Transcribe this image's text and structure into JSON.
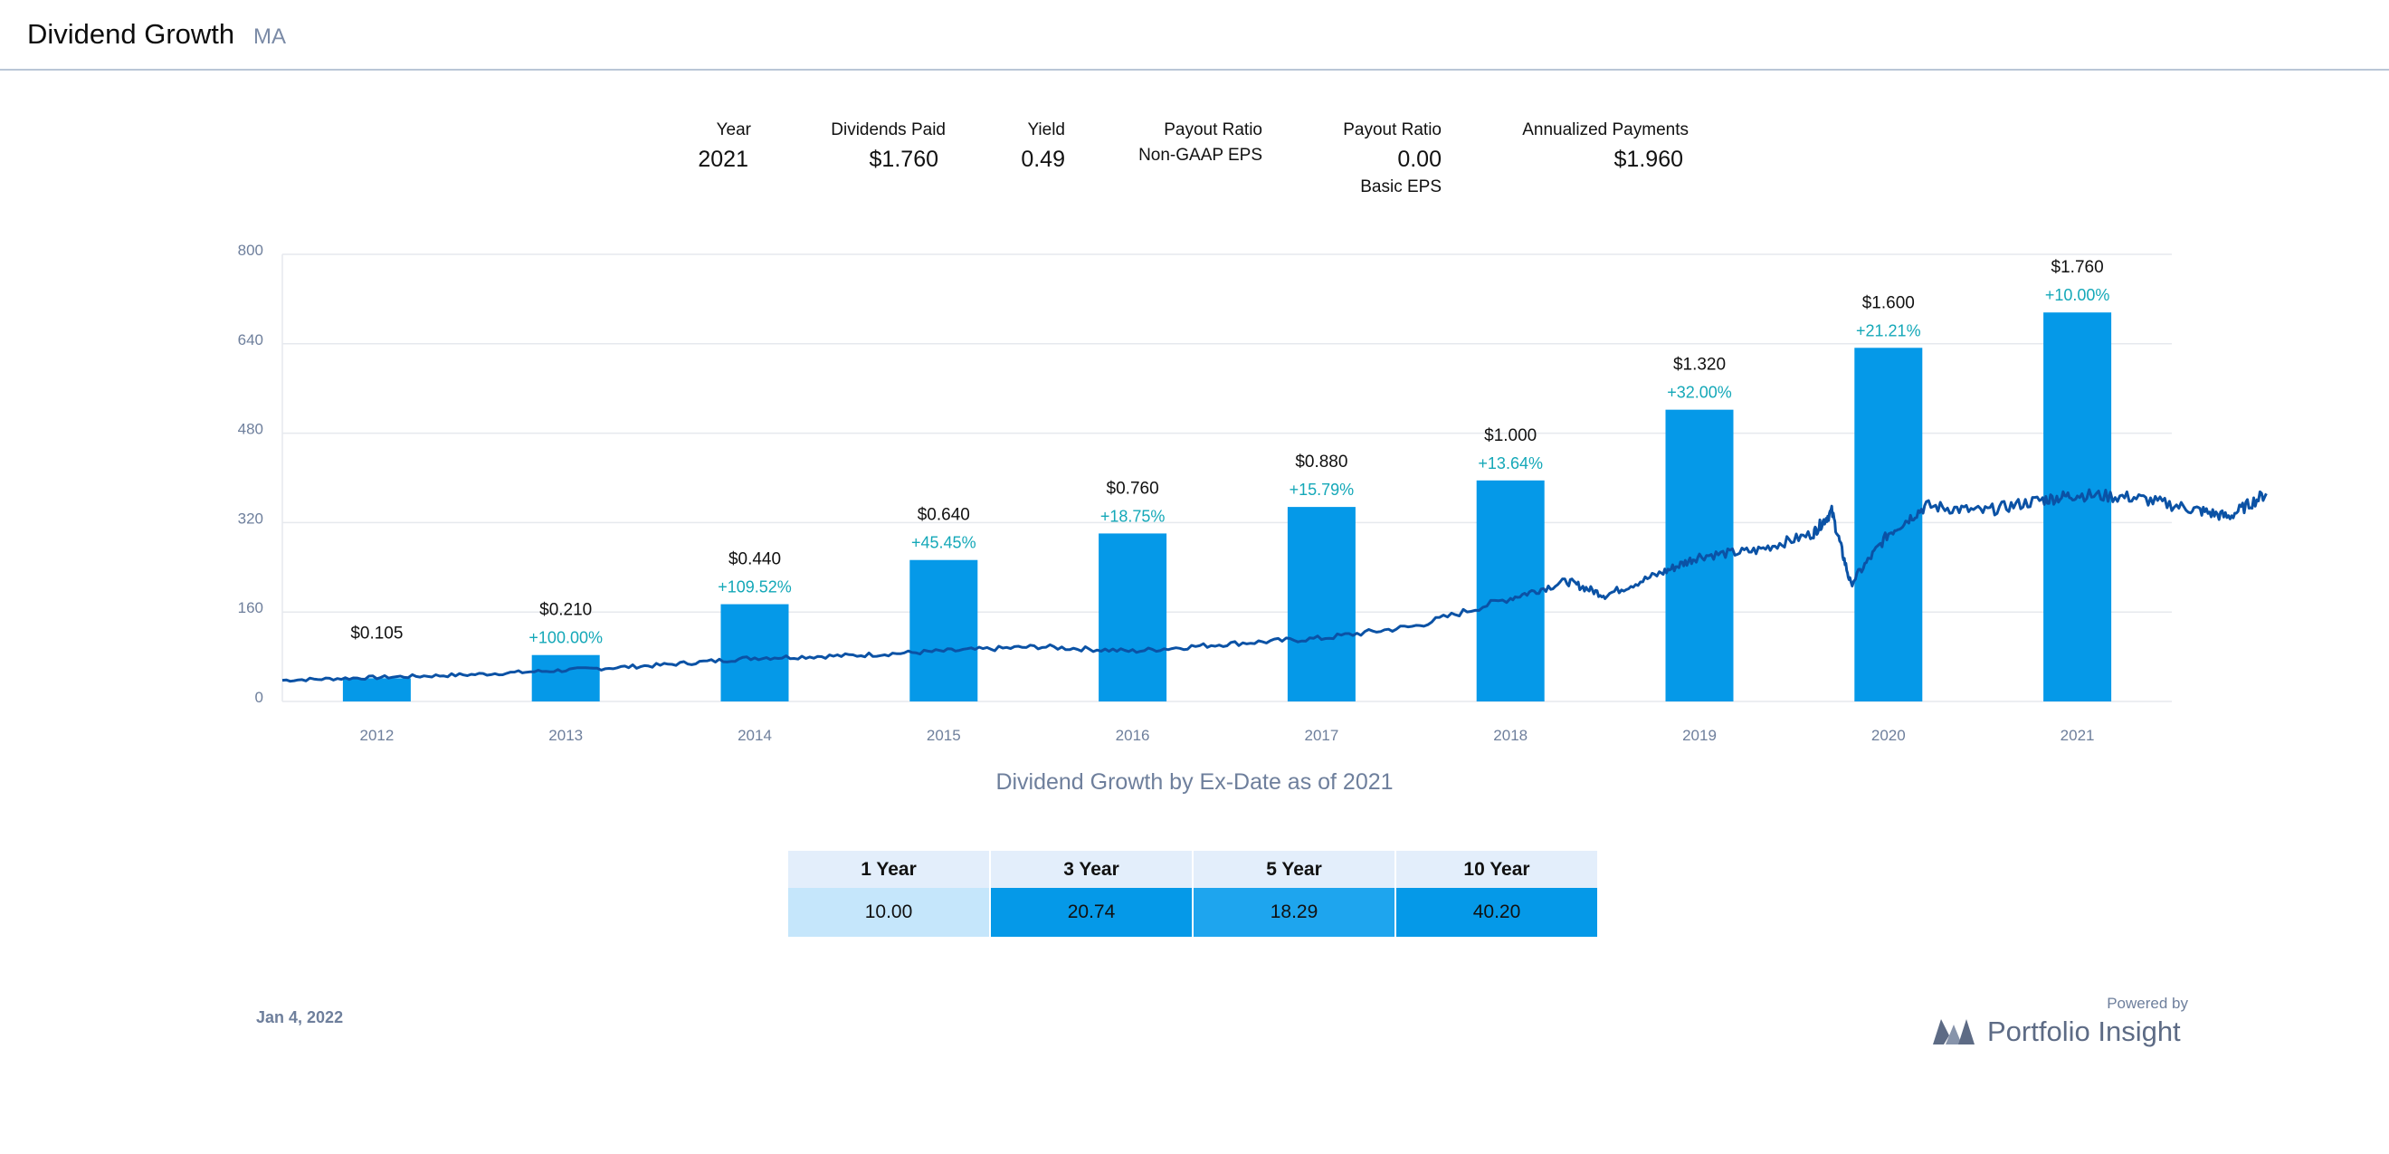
{
  "header": {
    "title": "Dividend Growth",
    "ticker": "MA"
  },
  "stats": [
    {
      "label": "Year",
      "value": "2021",
      "sub": ""
    },
    {
      "label": "Dividends Paid",
      "value": "$1.760",
      "sub": ""
    },
    {
      "label": "Yield",
      "value": "0.49",
      "sub": ""
    },
    {
      "label": "Payout Ratio",
      "value": "",
      "sub": "Non-GAAP EPS"
    },
    {
      "label": "Payout Ratio",
      "value": "0.00",
      "sub": "Basic EPS"
    },
    {
      "label": "Annualized Payments",
      "value": "$1.960",
      "sub": ""
    }
  ],
  "chart_data": {
    "type": "bar",
    "caption": "Dividend Growth by Ex-Date as of 2021",
    "categories": [
      "2012",
      "2013",
      "2014",
      "2015",
      "2016",
      "2017",
      "2018",
      "2019",
      "2020",
      "2021"
    ],
    "series": [
      {
        "kind": "bar",
        "values": [
          0.105,
          0.21,
          0.44,
          0.64,
          0.76,
          0.88,
          1.0,
          1.32,
          1.6,
          1.76
        ],
        "value_labels": [
          "$0.105",
          "$0.210",
          "$0.440",
          "$0.640",
          "$0.760",
          "$0.880",
          "$1.000",
          "$1.320",
          "$1.600",
          "$1.760"
        ],
        "growth_labels": [
          "",
          "+100.00%",
          "+109.52%",
          "+45.45%",
          "+18.75%",
          "+15.79%",
          "+13.64%",
          "+32.00%",
          "+21.21%",
          "+10.00%"
        ]
      },
      {
        "kind": "line",
        "x": [
          2011.5,
          2012.0,
          2012.5,
          2013.0,
          2013.5,
          2014.0,
          2014.5,
          2015.0,
          2015.5,
          2016.0,
          2016.5,
          2017.0,
          2017.5,
          2018.0,
          2018.3,
          2018.5,
          2018.8,
          2019.0,
          2019.3,
          2019.6,
          2019.7,
          2019.8,
          2020.0,
          2020.2,
          2020.5,
          2020.8,
          2021.0,
          2021.3,
          2021.6,
          2021.8,
          2022.0
        ],
        "y": [
          38,
          43,
          48,
          56,
          65,
          78,
          82,
          90,
          98,
          90,
          103,
          113,
          135,
          185,
          215,
          190,
          230,
          260,
          270,
          300,
          340,
          210,
          300,
          350,
          340,
          360,
          370,
          365,
          345,
          330,
          372
        ]
      }
    ],
    "ylim": [
      0,
      800
    ],
    "yticks": [
      "0",
      "160",
      "320",
      "480",
      "640",
      "800"
    ],
    "grid": true,
    "colors": {
      "bar": "#0599e8",
      "line": "#0b52a5",
      "growth": "#14a8b8",
      "grid": "#e6e9ee",
      "tick": "#6e7f9c"
    }
  },
  "growth_table": {
    "headers": [
      "1 Year",
      "3 Year",
      "5 Year",
      "10 Year"
    ],
    "values": [
      "10.00",
      "20.74",
      "18.29",
      "40.20"
    ],
    "colors": [
      "#c5e6fb",
      "#0599e8",
      "#1ea5ee",
      "#0599e8"
    ]
  },
  "footer": {
    "date": "Jan 4, 2022",
    "powered_by": "Powered by",
    "brand": "Portfolio Insight",
    "brand_color": "#5d6b85"
  }
}
